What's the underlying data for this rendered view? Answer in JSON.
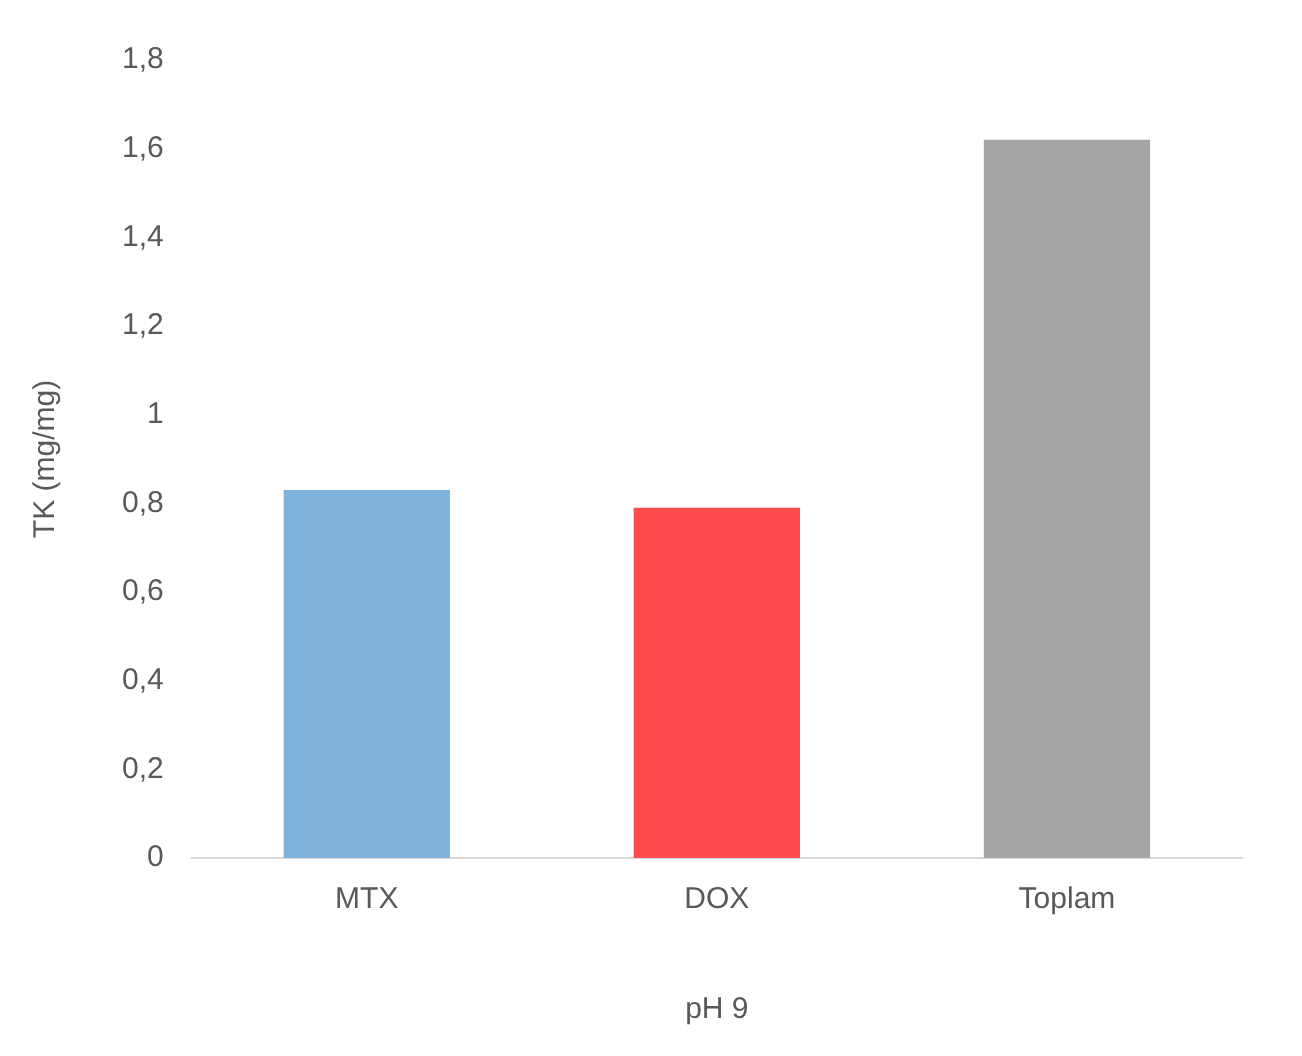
{
  "chart_data": {
    "type": "bar",
    "xlabel": "pH 9",
    "ylabel": "TK (mg/mg)",
    "categories": [
      "MTX",
      "DOX",
      "Toplam"
    ],
    "values": [
      0.83,
      0.79,
      1.62
    ],
    "colors": [
      "#7fb3dc",
      "#ff4b4b",
      "#a5a5a5"
    ],
    "ylim": [
      0,
      1.8
    ],
    "yticks": [
      {
        "value": 0,
        "label": "0"
      },
      {
        "value": 0.2,
        "label": "0,2"
      },
      {
        "value": 0.4,
        "label": "0,4"
      },
      {
        "value": 0.6,
        "label": "0,6"
      },
      {
        "value": 0.8,
        "label": "0,8"
      },
      {
        "value": 1,
        "label": "1"
      },
      {
        "value": 1.2,
        "label": "1,2"
      },
      {
        "value": 1.4,
        "label": "1,4"
      },
      {
        "value": 1.6,
        "label": "1,6"
      },
      {
        "value": 1.8,
        "label": "1,8"
      }
    ],
    "grid": false,
    "legend": false
  }
}
